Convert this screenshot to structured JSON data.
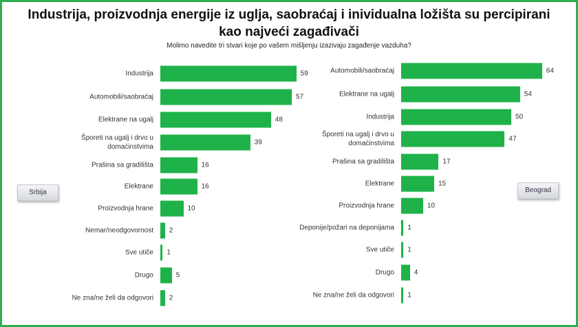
{
  "title": "Industrija, proizvodnja energije iz uglja, saobraćaj i inividualna ložišta su percipirani kao najveći zagađivači",
  "subtitle": "Molimo navedite tri stvari koje po vašem mišljenju izazivaju zagađenje vazduha?",
  "chart_data": [
    {
      "type": "bar",
      "name": "Srbija",
      "color": "#1fb24a",
      "categories": [
        "Industrija",
        "Automobili/saobraćaj",
        "Elektrane na ugalj",
        "Šporeti na ugalj i drvo u domaćinstvima",
        "Prašina sa gradilišta",
        "Elektrane",
        "Proizvodnja hrane",
        "Nemar/neodgovornost",
        "Sve utiče",
        "Drugo",
        "Ne zna/ne želi da odgovori"
      ],
      "values": [
        59,
        57,
        48,
        39,
        16,
        16,
        10,
        2,
        1,
        5,
        2
      ]
    },
    {
      "type": "bar",
      "name": "Beograd",
      "color": "#1fb24a",
      "categories": [
        "Automobili/saobraćaj",
        "Elektrane na ugalj",
        "Industrija",
        "Šporeti na ugalj i drvo u domaćinstvima",
        "Prašina sa gradilišta",
        "Elektrane",
        "Proizvodnja hrane",
        "Deponije/požari na deponijama",
        "Sve utiče",
        "Drugo",
        "Ne zna/ne želi da odgovori"
      ],
      "values": [
        64,
        54,
        50,
        47,
        17,
        15,
        10,
        1,
        1,
        4,
        1
      ]
    }
  ]
}
